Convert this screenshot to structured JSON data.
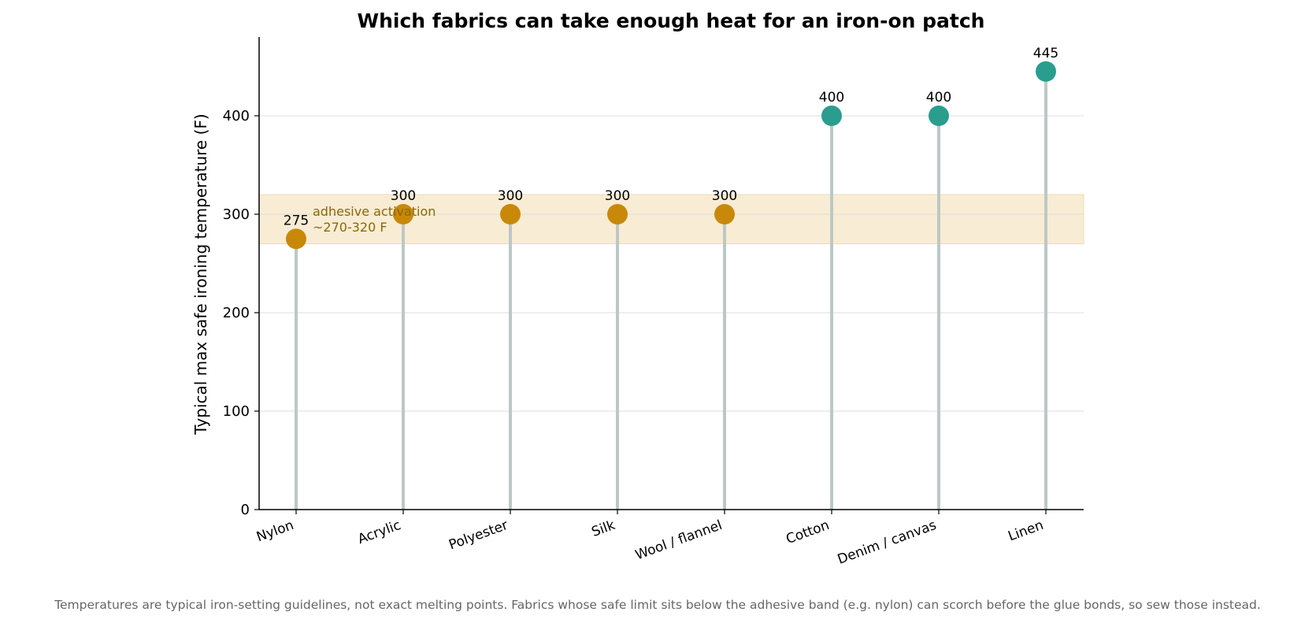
{
  "chart_data": {
    "type": "lollipop",
    "title": "Which fabrics can take enough heat for an iron-on patch",
    "ylabel": "Typical max safe ironing temperature (F)",
    "xlabel": "",
    "ylim": [
      0,
      480
    ],
    "yticks": [
      0,
      100,
      200,
      300,
      400
    ],
    "categories": [
      "Nylon",
      "Acrylic",
      "Polyester",
      "Silk",
      "Wool / flannel",
      "Cotton",
      "Denim / canvas",
      "Linen"
    ],
    "values": [
      275,
      300,
      300,
      300,
      300,
      400,
      400,
      445
    ],
    "band": {
      "range": [
        270,
        320
      ],
      "label_line1": "adhesive activation",
      "label_line2": "~270-320 F"
    },
    "grid": "horizontal",
    "colors": {
      "in_band": "#c8890a",
      "above_band": "#2a9d8f",
      "stem": "#bcc8c6",
      "band_fill": "#f8ecd4",
      "band_text": "#8a6a00"
    },
    "footnote": "Temperatures are typical iron-setting guidelines, not exact melting points. Fabrics whose safe limit sits below the adhesive band (e.g. nylon) can scorch before the glue bonds, so sew those instead."
  }
}
